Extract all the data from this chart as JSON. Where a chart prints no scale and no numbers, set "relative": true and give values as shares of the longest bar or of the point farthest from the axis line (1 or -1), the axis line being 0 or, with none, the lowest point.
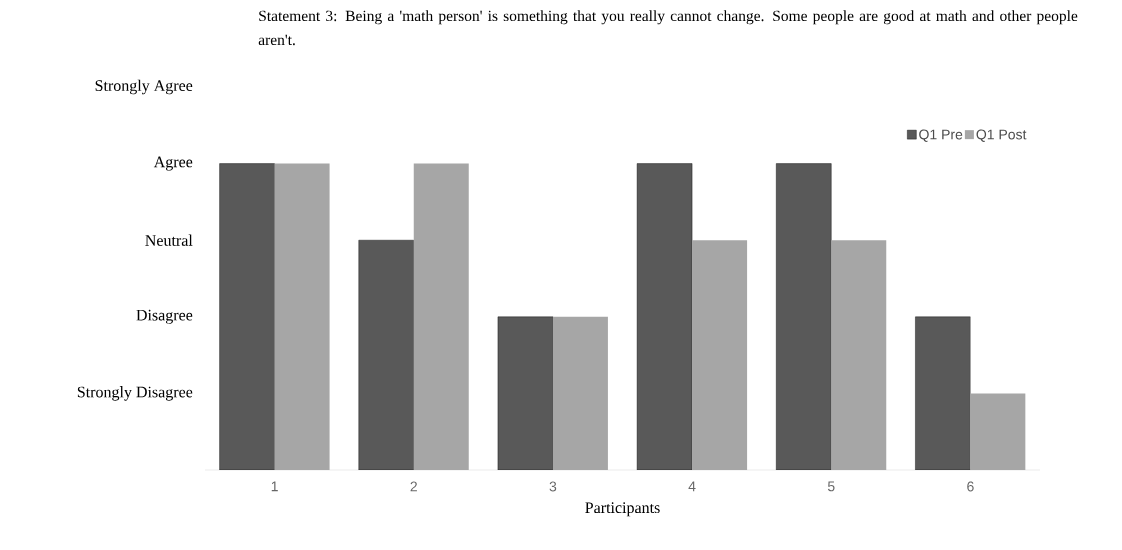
{
  "chart_data": {
    "type": "bar",
    "relative": true,
    "title": "Statement 3: Being a 'math person' is something that you really cannot change.  Some people are good at math and other people aren't.",
    "xlabel": "Participants",
    "categories": [
      "1",
      "2",
      "3",
      "4",
      "5",
      "6"
    ],
    "series": [
      {
        "name": "Q1 Pre",
        "color": "#595959",
        "values": [
          1,
          0.75,
          0.5,
          1,
          1,
          0.5
        ]
      },
      {
        "name": "Q1 Post",
        "color": "#a6a6a6",
        "values": [
          1,
          1,
          0.5,
          0.75,
          0.75,
          0.25
        ]
      }
    ],
    "annotations": [
      "Strongly Disagree",
      "Disagree",
      "Neutral",
      "Agree",
      "Strongly Agree"
    ],
    "legend": "top right"
  }
}
